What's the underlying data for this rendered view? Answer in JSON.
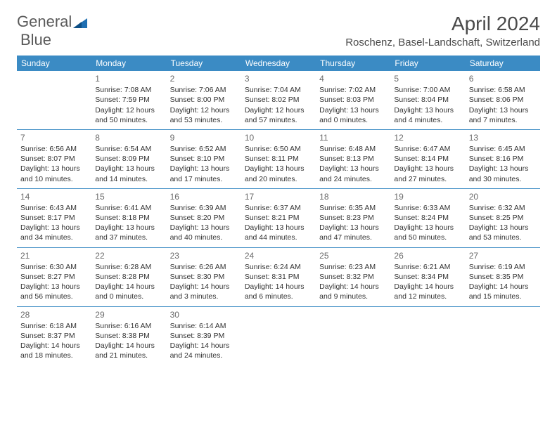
{
  "logo": {
    "text_a": "General",
    "text_b": "Blue"
  },
  "header": {
    "month_title": "April 2024",
    "location": "Roschenz, Basel-Landschaft, Switzerland"
  },
  "colors": {
    "header_bg": "#3b8bc4",
    "header_text": "#ffffff",
    "divider": "#3b8bc4",
    "body_text": "#333333",
    "daynum": "#6a6a6a",
    "logo_gray": "#5a5a5a",
    "logo_blue": "#1f6fb2"
  },
  "weekdays": [
    "Sunday",
    "Monday",
    "Tuesday",
    "Wednesday",
    "Thursday",
    "Friday",
    "Saturday"
  ],
  "weeks": [
    [
      {
        "n": "",
        "sr": "",
        "ss": "",
        "dl": ""
      },
      {
        "n": "1",
        "sr": "7:08 AM",
        "ss": "7:59 PM",
        "dl": "12 hours and 50 minutes."
      },
      {
        "n": "2",
        "sr": "7:06 AM",
        "ss": "8:00 PM",
        "dl": "12 hours and 53 minutes."
      },
      {
        "n": "3",
        "sr": "7:04 AM",
        "ss": "8:02 PM",
        "dl": "12 hours and 57 minutes."
      },
      {
        "n": "4",
        "sr": "7:02 AM",
        "ss": "8:03 PM",
        "dl": "13 hours and 0 minutes."
      },
      {
        "n": "5",
        "sr": "7:00 AM",
        "ss": "8:04 PM",
        "dl": "13 hours and 4 minutes."
      },
      {
        "n": "6",
        "sr": "6:58 AM",
        "ss": "8:06 PM",
        "dl": "13 hours and 7 minutes."
      }
    ],
    [
      {
        "n": "7",
        "sr": "6:56 AM",
        "ss": "8:07 PM",
        "dl": "13 hours and 10 minutes."
      },
      {
        "n": "8",
        "sr": "6:54 AM",
        "ss": "8:09 PM",
        "dl": "13 hours and 14 minutes."
      },
      {
        "n": "9",
        "sr": "6:52 AM",
        "ss": "8:10 PM",
        "dl": "13 hours and 17 minutes."
      },
      {
        "n": "10",
        "sr": "6:50 AM",
        "ss": "8:11 PM",
        "dl": "13 hours and 20 minutes."
      },
      {
        "n": "11",
        "sr": "6:48 AM",
        "ss": "8:13 PM",
        "dl": "13 hours and 24 minutes."
      },
      {
        "n": "12",
        "sr": "6:47 AM",
        "ss": "8:14 PM",
        "dl": "13 hours and 27 minutes."
      },
      {
        "n": "13",
        "sr": "6:45 AM",
        "ss": "8:16 PM",
        "dl": "13 hours and 30 minutes."
      }
    ],
    [
      {
        "n": "14",
        "sr": "6:43 AM",
        "ss": "8:17 PM",
        "dl": "13 hours and 34 minutes."
      },
      {
        "n": "15",
        "sr": "6:41 AM",
        "ss": "8:18 PM",
        "dl": "13 hours and 37 minutes."
      },
      {
        "n": "16",
        "sr": "6:39 AM",
        "ss": "8:20 PM",
        "dl": "13 hours and 40 minutes."
      },
      {
        "n": "17",
        "sr": "6:37 AM",
        "ss": "8:21 PM",
        "dl": "13 hours and 44 minutes."
      },
      {
        "n": "18",
        "sr": "6:35 AM",
        "ss": "8:23 PM",
        "dl": "13 hours and 47 minutes."
      },
      {
        "n": "19",
        "sr": "6:33 AM",
        "ss": "8:24 PM",
        "dl": "13 hours and 50 minutes."
      },
      {
        "n": "20",
        "sr": "6:32 AM",
        "ss": "8:25 PM",
        "dl": "13 hours and 53 minutes."
      }
    ],
    [
      {
        "n": "21",
        "sr": "6:30 AM",
        "ss": "8:27 PM",
        "dl": "13 hours and 56 minutes."
      },
      {
        "n": "22",
        "sr": "6:28 AM",
        "ss": "8:28 PM",
        "dl": "14 hours and 0 minutes."
      },
      {
        "n": "23",
        "sr": "6:26 AM",
        "ss": "8:30 PM",
        "dl": "14 hours and 3 minutes."
      },
      {
        "n": "24",
        "sr": "6:24 AM",
        "ss": "8:31 PM",
        "dl": "14 hours and 6 minutes."
      },
      {
        "n": "25",
        "sr": "6:23 AM",
        "ss": "8:32 PM",
        "dl": "14 hours and 9 minutes."
      },
      {
        "n": "26",
        "sr": "6:21 AM",
        "ss": "8:34 PM",
        "dl": "14 hours and 12 minutes."
      },
      {
        "n": "27",
        "sr": "6:19 AM",
        "ss": "8:35 PM",
        "dl": "14 hours and 15 minutes."
      }
    ],
    [
      {
        "n": "28",
        "sr": "6:18 AM",
        "ss": "8:37 PM",
        "dl": "14 hours and 18 minutes."
      },
      {
        "n": "29",
        "sr": "6:16 AM",
        "ss": "8:38 PM",
        "dl": "14 hours and 21 minutes."
      },
      {
        "n": "30",
        "sr": "6:14 AM",
        "ss": "8:39 PM",
        "dl": "14 hours and 24 minutes."
      },
      {
        "n": "",
        "sr": "",
        "ss": "",
        "dl": ""
      },
      {
        "n": "",
        "sr": "",
        "ss": "",
        "dl": ""
      },
      {
        "n": "",
        "sr": "",
        "ss": "",
        "dl": ""
      },
      {
        "n": "",
        "sr": "",
        "ss": "",
        "dl": ""
      }
    ]
  ],
  "labels": {
    "sunrise_prefix": "Sunrise: ",
    "sunset_prefix": "Sunset: ",
    "daylight_prefix": "Daylight: "
  }
}
